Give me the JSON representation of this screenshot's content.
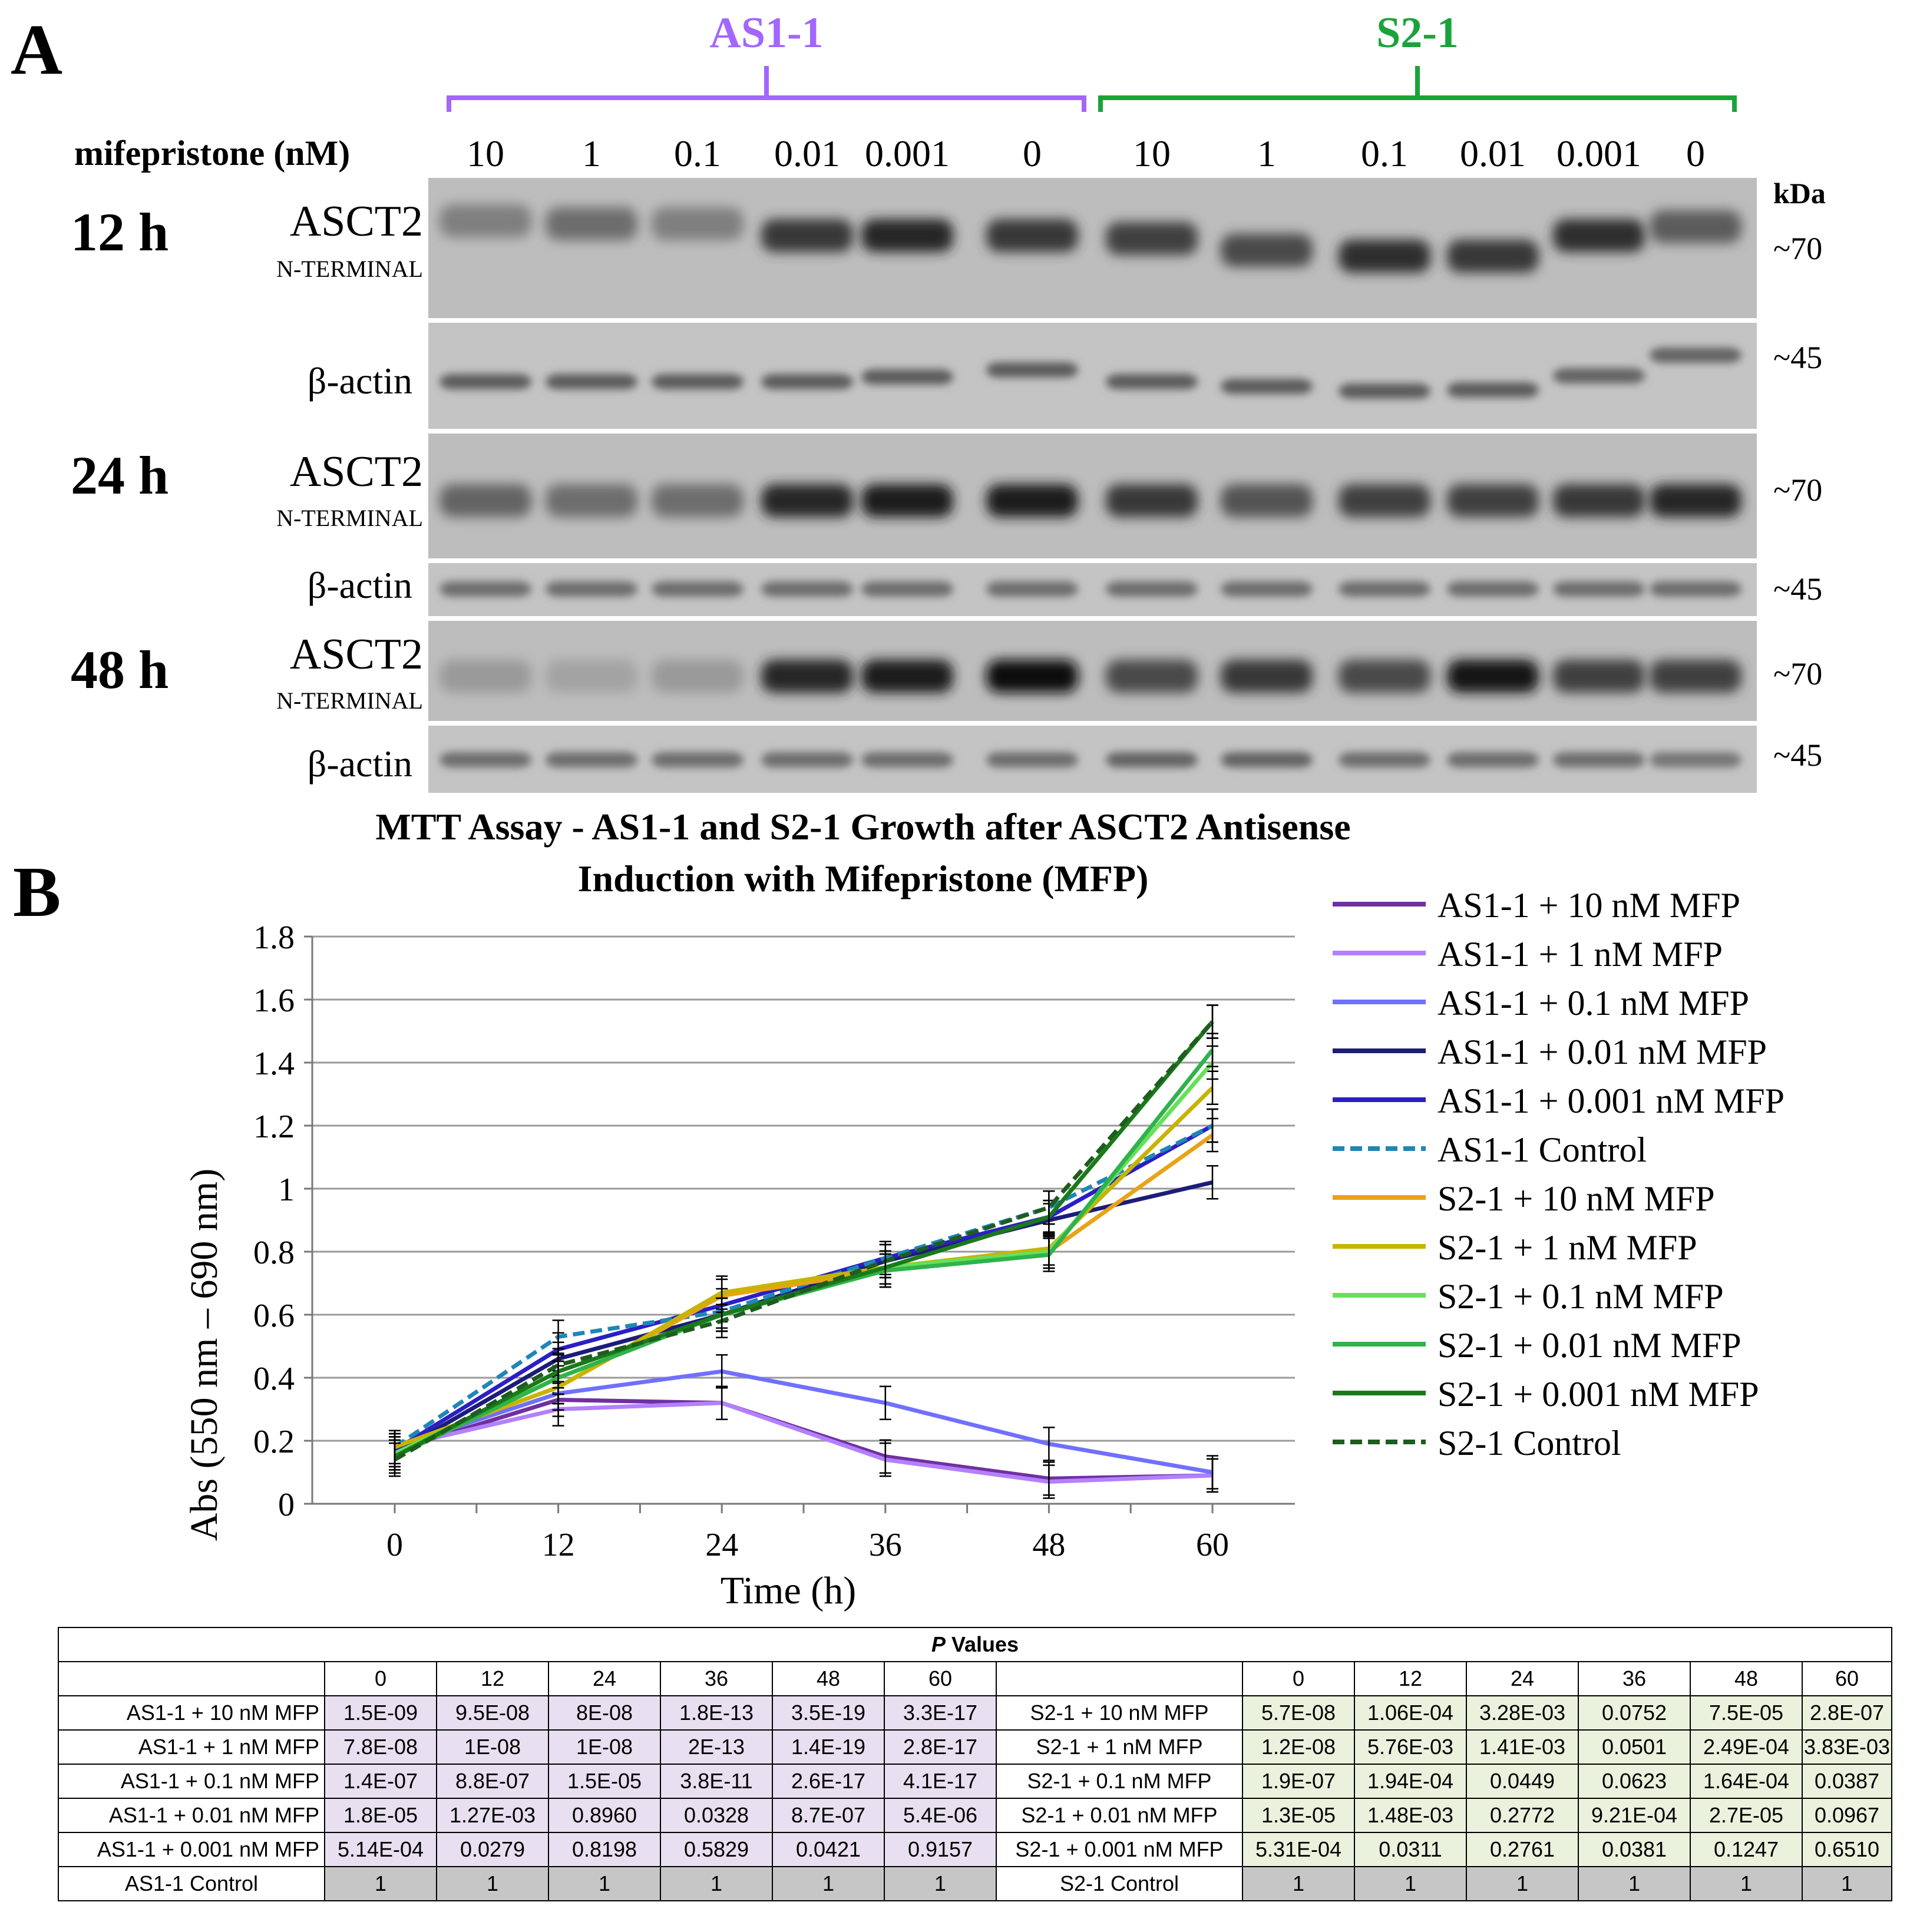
{
  "panel_a": {
    "label": "A",
    "groups": [
      {
        "name": "AS1-1",
        "color": "#a366ff"
      },
      {
        "name": "S2-1",
        "color": "#1aa33a"
      }
    ],
    "conc_label": "mifepristone (nM)",
    "concentrations": [
      "10",
      "1",
      "0.1",
      "0.01",
      "0.001",
      "0",
      "10",
      "1",
      "0.1",
      "0.01",
      "0.001",
      "0"
    ],
    "kda_label": "kDa",
    "timepoints": [
      "12 h",
      "24 h",
      "48 h"
    ],
    "asct2_label": "ASCT2",
    "asct2_sublabel": "N-TERMINAL",
    "actin_label": "β-actin",
    "mw_asct2": "~70",
    "mw_actin": "~45"
  },
  "panel_b": {
    "label": "B",
    "title_line1": "MTT Assay - AS1-1 and S2-1 Growth after ASCT2 Antisense",
    "title_line2": "Induction with Mifepristone (MFP)",
    "chart_data": {
      "type": "line",
      "title": "MTT Assay - AS1-1 and S2-1 Growth after ASCT2 Antisense Induction with Mifepristone (MFP)",
      "xlabel": "Time (h)",
      "ylabel": "Abs (550 nm – 690 nm)",
      "x": [
        0,
        12,
        24,
        36,
        48,
        60
      ],
      "xlim": [
        0,
        60
      ],
      "ylim": [
        0,
        1.8
      ],
      "yticks": [
        "0",
        "0.2",
        "0.4",
        "0.6",
        "0.8",
        "1",
        "1.2",
        "1.4",
        "1.6",
        "1.8"
      ],
      "xticks": [
        "0",
        "12",
        "24",
        "36",
        "48",
        "60"
      ],
      "grid": "horizontal",
      "legend": "right",
      "series": [
        {
          "name": "AS1-1 + 10 nM MFP",
          "color": "#7030a0",
          "dash": false,
          "values": [
            0.17,
            0.33,
            0.32,
            0.15,
            0.08,
            0.09
          ]
        },
        {
          "name": "AS1-1 + 1 nM MFP",
          "color": "#b380ff",
          "dash": false,
          "values": [
            0.18,
            0.3,
            0.32,
            0.14,
            0.07,
            0.09
          ]
        },
        {
          "name": "AS1-1 + 0.1 nM MFP",
          "color": "#7070ff",
          "dash": false,
          "values": [
            0.18,
            0.35,
            0.42,
            0.32,
            0.19,
            0.1
          ]
        },
        {
          "name": "AS1-1 + 0.01 nM MFP",
          "color": "#1c1c7a",
          "dash": false,
          "values": [
            0.16,
            0.46,
            0.6,
            0.77,
            0.9,
            1.02
          ]
        },
        {
          "name": "AS1-1 + 0.001 nM MFP",
          "color": "#2b1fc4",
          "dash": false,
          "values": [
            0.17,
            0.49,
            0.63,
            0.78,
            0.91,
            1.2
          ]
        },
        {
          "name": "AS1-1 Control",
          "color": "#1f86b8",
          "dash": true,
          "values": [
            0.18,
            0.53,
            0.61,
            0.78,
            0.94,
            1.2
          ]
        },
        {
          "name": "S2-1 + 10 nM MFP",
          "color": "#e8a317",
          "dash": false,
          "values": [
            0.18,
            0.37,
            0.66,
            0.74,
            0.8,
            1.17
          ]
        },
        {
          "name": "S2-1 + 1 nM MFP",
          "color": "#c8b400",
          "dash": false,
          "values": [
            0.18,
            0.37,
            0.67,
            0.75,
            0.81,
            1.32
          ]
        },
        {
          "name": "S2-1 + 0.1 nM MFP",
          "color": "#66e05a",
          "dash": false,
          "values": [
            0.16,
            0.4,
            0.6,
            0.75,
            0.8,
            1.4
          ]
        },
        {
          "name": "S2-1 + 0.01 nM MFP",
          "color": "#2fb34a",
          "dash": false,
          "values": [
            0.15,
            0.4,
            0.6,
            0.74,
            0.79,
            1.44
          ]
        },
        {
          "name": "S2-1 + 0.001 nM MFP",
          "color": "#1a7a1a",
          "dash": false,
          "values": [
            0.15,
            0.42,
            0.6,
            0.75,
            0.91,
            1.53
          ]
        },
        {
          "name": "S2-1 Control",
          "color": "#1f5c1f",
          "dash": true,
          "values": [
            0.14,
            0.44,
            0.58,
            0.77,
            0.94,
            1.53
          ]
        }
      ]
    }
  },
  "table": {
    "title_italic": "P",
    "title_rest": " Values",
    "times": [
      "0",
      "12",
      "24",
      "36",
      "48",
      "60"
    ],
    "rows": [
      {
        "as_label": "AS1-1 + 10 nM MFP",
        "as_vals": [
          "1.5E-09",
          "9.5E-08",
          "8E-08",
          "1.8E-13",
          "3.5E-19",
          "3.3E-17"
        ],
        "s_label": "S2-1 + 10 nM MFP",
        "s_vals": [
          "5.7E-08",
          "1.06E-04",
          "3.28E-03",
          "0.0752",
          "7.5E-05",
          "2.8E-07"
        ]
      },
      {
        "as_label": "AS1-1 + 1 nM MFP",
        "as_vals": [
          "7.8E-08",
          "1E-08",
          "1E-08",
          "2E-13",
          "1.4E-19",
          "2.8E-17"
        ],
        "s_label": "S2-1 + 1 nM MFP",
        "s_vals": [
          "1.2E-08",
          "5.76E-03",
          "1.41E-03",
          "0.0501",
          "2.49E-04",
          "3.83E-03"
        ]
      },
      {
        "as_label": "AS1-1 + 0.1 nM MFP",
        "as_vals": [
          "1.4E-07",
          "8.8E-07",
          "1.5E-05",
          "3.8E-11",
          "2.6E-17",
          "4.1E-17"
        ],
        "s_label": "S2-1 + 0.1 nM MFP",
        "s_vals": [
          "1.9E-07",
          "1.94E-04",
          "0.0449",
          "0.0623",
          "1.64E-04",
          "0.0387"
        ]
      },
      {
        "as_label": "AS1-1 + 0.01 nM MFP",
        "as_vals": [
          "1.8E-05",
          "1.27E-03",
          "0.8960",
          "0.0328",
          "8.7E-07",
          "5.4E-06"
        ],
        "s_label": "S2-1 + 0.01 nM MFP",
        "s_vals": [
          "1.3E-05",
          "1.48E-03",
          "0.2772",
          "9.21E-04",
          "2.7E-05",
          "0.0967"
        ]
      },
      {
        "as_label": "AS1-1 + 0.001 nM MFP",
        "as_vals": [
          "5.14E-04",
          "0.0279",
          "0.8198",
          "0.5829",
          "0.0421",
          "0.9157"
        ],
        "s_label": "S2-1 + 0.001 nM MFP",
        "s_vals": [
          "5.31E-04",
          "0.0311",
          "0.2761",
          "0.0381",
          "0.1247",
          "0.6510"
        ]
      }
    ],
    "control_row": {
      "as_label": "AS1-1 Control",
      "as_vals": [
        "1",
        "1",
        "1",
        "1",
        "1",
        "1"
      ],
      "s_label": "S2-1 Control",
      "s_vals": [
        "1",
        "1",
        "1",
        "1",
        "1",
        "1"
      ]
    }
  }
}
